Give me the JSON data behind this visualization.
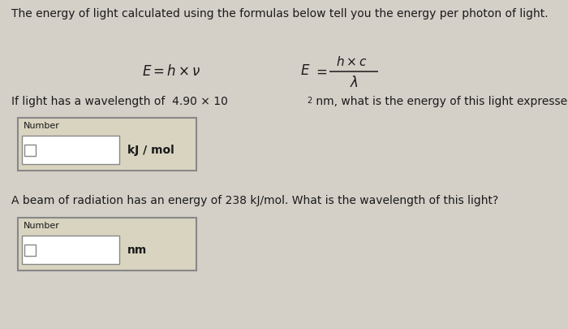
{
  "bg_color": "#d4d0c8",
  "text_color": "#1a1a1a",
  "title_text": "The energy of light calculated using the formulas below tell you the energy per photon of light.",
  "label1": "Number",
  "unit1": "kJ / mol",
  "question2": "A beam of radiation has an energy of 238 kJ/mol. What is the wavelength of this light?",
  "label2": "Number",
  "unit2": "nm",
  "box_bg": "#d8d4c0",
  "box_border": "#888888",
  "inner_box_bg": "#ffffff",
  "inner_box_border": "#888888",
  "figw": 7.0,
  "figh": 4.05,
  "dpi": 100
}
